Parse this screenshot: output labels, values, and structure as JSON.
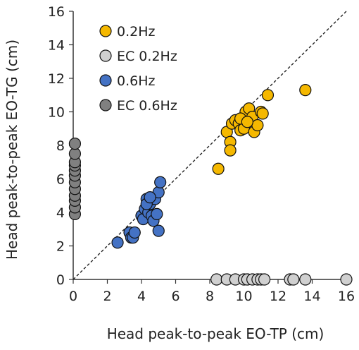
{
  "chart_data": {
    "type": "scatter",
    "xlabel": "Head peak-to-peak EO-TP (cm)",
    "ylabel": "Head peak-to-peak EO-TG (cm)",
    "xlim": [
      0,
      16
    ],
    "ylim": [
      0,
      16
    ],
    "x_ticks": [
      "0",
      "2",
      "4",
      "6",
      "8",
      "10",
      "12",
      "14",
      "16"
    ],
    "y_ticks": [
      "0",
      "2",
      "4",
      "6",
      "8",
      "10",
      "12",
      "14",
      "16"
    ],
    "grid": false,
    "legend_position": "top-left",
    "reference_line": {
      "style": "dashed",
      "from": [
        0,
        0
      ],
      "to": [
        16,
        16
      ]
    },
    "series": [
      {
        "name": "0.2Hz",
        "color": "#f5b800",
        "points": [
          [
            8.5,
            6.6
          ],
          [
            9.0,
            8.8
          ],
          [
            9.2,
            8.2
          ],
          [
            9.3,
            9.3
          ],
          [
            9.5,
            9.5
          ],
          [
            9.7,
            9.3
          ],
          [
            9.8,
            8.9
          ],
          [
            10.0,
            9.0
          ],
          [
            10.1,
            10.0
          ],
          [
            10.3,
            10.2
          ],
          [
            10.5,
            9.7
          ],
          [
            10.6,
            8.8
          ],
          [
            10.8,
            9.2
          ],
          [
            11.0,
            10.0
          ],
          [
            11.1,
            9.9
          ],
          [
            11.4,
            11.0
          ],
          [
            13.6,
            11.3
          ],
          [
            9.2,
            7.7
          ],
          [
            9.8,
            9.6
          ],
          [
            10.2,
            9.4
          ]
        ]
      },
      {
        "name": "EC 0.2Hz",
        "color": "#d0d0d0",
        "points": [
          [
            8.4,
            0
          ],
          [
            9.0,
            0
          ],
          [
            9.5,
            0
          ],
          [
            10.0,
            0
          ],
          [
            10.2,
            0
          ],
          [
            10.5,
            0
          ],
          [
            10.8,
            0
          ],
          [
            11.0,
            0
          ],
          [
            11.2,
            0
          ],
          [
            12.7,
            0
          ],
          [
            12.9,
            0
          ],
          [
            13.6,
            0
          ],
          [
            16.0,
            0
          ]
        ]
      },
      {
        "name": "0.6Hz",
        "color": "#4472c4",
        "points": [
          [
            2.6,
            2.2
          ],
          [
            3.3,
            2.8
          ],
          [
            3.4,
            2.5
          ],
          [
            3.5,
            2.5
          ],
          [
            3.6,
            2.8
          ],
          [
            4.0,
            3.8
          ],
          [
            4.1,
            3.6
          ],
          [
            4.2,
            4.2
          ],
          [
            4.3,
            4.8
          ],
          [
            4.4,
            4.0
          ],
          [
            4.5,
            4.5
          ],
          [
            4.6,
            3.8
          ],
          [
            4.7,
            3.5
          ],
          [
            4.8,
            4.8
          ],
          [
            4.9,
            3.9
          ],
          [
            5.0,
            2.9
          ],
          [
            5.0,
            5.2
          ],
          [
            5.1,
            5.8
          ],
          [
            4.3,
            4.5
          ],
          [
            4.5,
            4.9
          ]
        ]
      },
      {
        "name": "EC 0.6Hz",
        "color": "#808080",
        "points": [
          [
            0.1,
            3.9
          ],
          [
            0.1,
            4.3
          ],
          [
            0.1,
            4.7
          ],
          [
            0.1,
            5.0
          ],
          [
            0.1,
            5.4
          ],
          [
            0.1,
            5.8
          ],
          [
            0.1,
            6.2
          ],
          [
            0.1,
            6.5
          ],
          [
            0.1,
            6.8
          ],
          [
            0.1,
            7.0
          ],
          [
            0.1,
            7.5
          ],
          [
            0.1,
            8.1
          ]
        ]
      }
    ]
  }
}
